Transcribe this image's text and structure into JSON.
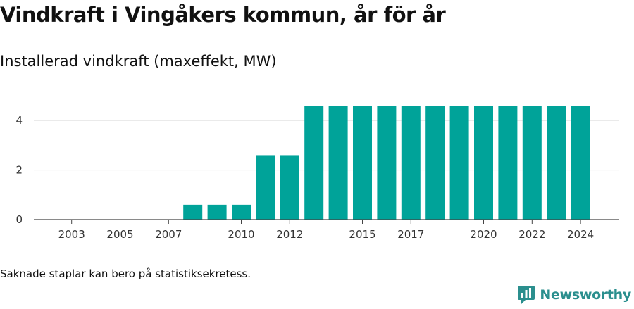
{
  "title": "Vindkraft i Vingåkers kommun, år för år",
  "subtitle": "Installerad vindkraft (maxeffekt, MW)",
  "footnote": "Saknade staplar kan bero på statistiksekretess.",
  "brand": {
    "name": "Newsworthy",
    "icon": "newsworthy-logo-icon",
    "color": "#2b8f8e"
  },
  "chart_data": {
    "type": "bar",
    "title": "Vindkraft i Vingåkers kommun, år för år",
    "subtitle": "Installerad vindkraft (maxeffekt, MW)",
    "xlabel": "",
    "ylabel": "",
    "categories": [
      "2002",
      "2003",
      "2004",
      "2005",
      "2006",
      "2007",
      "2008",
      "2009",
      "2010",
      "2011",
      "2012",
      "2013",
      "2014",
      "2015",
      "2016",
      "2017",
      "2018",
      "2019",
      "2020",
      "2021",
      "2022",
      "2023",
      "2024"
    ],
    "values": [
      0,
      0,
      0,
      0,
      0,
      0,
      0.6,
      0.6,
      0.6,
      2.6,
      2.6,
      4.6,
      4.6,
      4.6,
      4.6,
      4.6,
      4.6,
      4.6,
      4.6,
      4.6,
      4.6,
      4.6,
      4.6
    ],
    "x_tick_labels": [
      "2003",
      "2005",
      "2007",
      "2010",
      "2012",
      "2015",
      "2017",
      "2020",
      "2022",
      "2024"
    ],
    "y_ticks": [
      0,
      2,
      4
    ],
    "ylim": [
      0,
      4.6
    ],
    "bar_color": "#00a399",
    "grid": true,
    "legend": "none"
  }
}
